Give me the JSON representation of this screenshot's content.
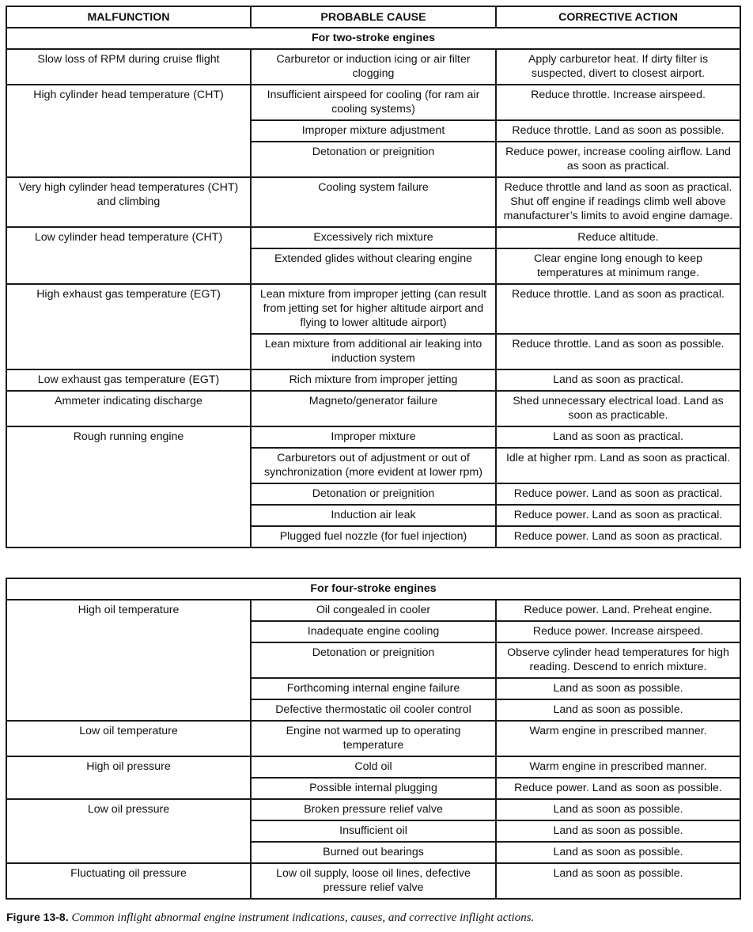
{
  "headers": [
    "MALFUNCTION",
    "PROBABLE CAUSE",
    "CORRECTIVE ACTION"
  ],
  "sections": [
    {
      "title": "For two-stroke engines",
      "groups": [
        {
          "malfunction": "Slow loss of RPM during cruise flight",
          "rows": [
            {
              "cause": "Carburetor or induction icing or air filter clogging",
              "action": "Apply carburetor heat. If dirty filter is suspected, divert to closest airport."
            }
          ]
        },
        {
          "malfunction": "High cylinder head temperature (CHT)",
          "rows": [
            {
              "cause": "Insufficient airspeed for cooling (for ram air cooling systems)",
              "action": "Reduce throttle. Increase airspeed."
            },
            {
              "cause": "Improper mixture adjustment",
              "action": "Reduce throttle. Land as soon as possible."
            },
            {
              "cause": "Detonation or preignition",
              "action": "Reduce power, increase cooling airflow. Land as soon as practical."
            }
          ]
        },
        {
          "malfunction": "Very high cylinder head temperatures (CHT) and climbing",
          "rows": [
            {
              "cause": "Cooling system failure",
              "action": "Reduce throttle and land as soon as practical. Shut off engine if readings climb well above manufacturer’s limits to avoid engine damage."
            }
          ]
        },
        {
          "malfunction": "Low cylinder head temperature (CHT)",
          "rows": [
            {
              "cause": "Excessively rich mixture",
              "action": "Reduce altitude."
            },
            {
              "cause": "Extended glides without clearing engine",
              "action": "Clear engine long enough to keep temperatures at minimum range."
            }
          ]
        },
        {
          "malfunction": "High exhaust gas temperature (EGT)",
          "rows": [
            {
              "cause": "Lean mixture from improper jetting (can result from jetting set for higher altitude airport and flying to lower altitude airport)",
              "action": "Reduce throttle. Land as soon as practical."
            },
            {
              "cause": "Lean mixture from additional air leaking into induction system",
              "action": "Reduce throttle. Land as soon as possible."
            }
          ]
        },
        {
          "malfunction": "Low exhaust gas temperature (EGT)",
          "rows": [
            {
              "cause": "Rich mixture from improper jetting",
              "action": "Land as soon as practical."
            }
          ]
        },
        {
          "malfunction": "Ammeter indicating discharge",
          "rows": [
            {
              "cause": "Magneto/generator failure",
              "action": "Shed unnecessary electrical load. Land as soon as practicable."
            }
          ]
        },
        {
          "malfunction": "Rough running engine",
          "rows": [
            {
              "cause": "Improper mixture",
              "action": "Land as soon as practical."
            },
            {
              "cause": "Carburetors out of adjustment or out of synchronization (more evident at lower rpm)",
              "action": "Idle at higher rpm. Land as soon as practical."
            },
            {
              "cause": "Detonation or preignition",
              "action": "Reduce power. Land as soon as practical."
            },
            {
              "cause": "Induction air leak",
              "action": "Reduce power. Land as soon as practical."
            },
            {
              "cause": "Plugged fuel nozzle (for fuel injection)",
              "action": "Reduce power. Land as soon as practical."
            }
          ]
        }
      ]
    },
    {
      "title": "For four-stroke engines",
      "groups": [
        {
          "malfunction": "High oil temperature",
          "rows": [
            {
              "cause": "Oil congealed in cooler",
              "action": "Reduce power. Land. Preheat engine."
            },
            {
              "cause": "Inadequate engine cooling",
              "action": "Reduce power. Increase airspeed."
            },
            {
              "cause": "Detonation or preignition",
              "action": "Observe cylinder head temperatures for high reading. Descend to enrich mixture."
            },
            {
              "cause": "Forthcoming internal engine failure",
              "action": "Land as soon as possible."
            },
            {
              "cause": "Defective thermostatic oil cooler control",
              "action": "Land as soon as possible."
            }
          ]
        },
        {
          "malfunction": "Low oil temperature",
          "rows": [
            {
              "cause": "Engine not warmed up to operating temperature",
              "action": "Warm engine in prescribed manner."
            }
          ]
        },
        {
          "malfunction": "High oil pressure",
          "rows": [
            {
              "cause": "Cold oil",
              "action": "Warm engine in prescribed manner."
            },
            {
              "cause": "Possible internal plugging",
              "action": "Reduce power. Land as soon as possible."
            }
          ]
        },
        {
          "malfunction": "Low oil pressure",
          "rows": [
            {
              "cause": "Broken pressure relief valve",
              "action": "Land as soon as possible."
            },
            {
              "cause": "Insufficient oil",
              "action": "Land as soon as possible."
            },
            {
              "cause": "Burned out bearings",
              "action": "Land as soon as possible."
            }
          ]
        },
        {
          "malfunction": "Fluctuating oil pressure",
          "rows": [
            {
              "cause": "Low oil supply, loose oil lines, defective pressure relief valve",
              "action": "Land as soon as possible."
            }
          ]
        }
      ]
    }
  ],
  "caption": {
    "label": "Figure 13-8.",
    "text": "Common inflight abnormal engine instrument indications, causes, and corrective inflight actions."
  }
}
